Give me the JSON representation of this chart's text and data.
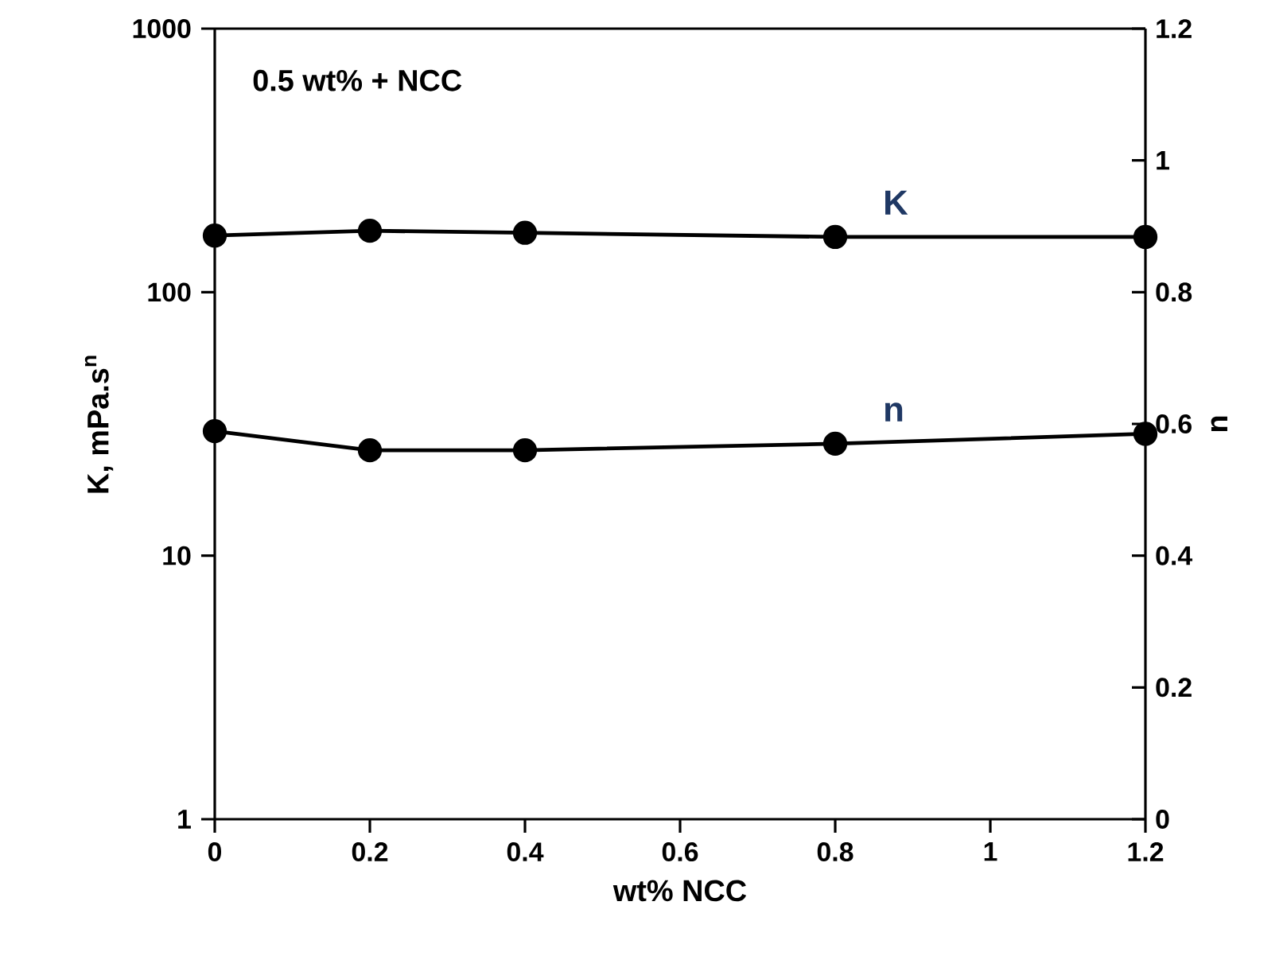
{
  "chart_data": {
    "type": "line",
    "title": "0.5 wt% + NCC",
    "xlabel": "wt% NCC",
    "ylabel": "K, mPa.s$^{n}$",
    "y2label": "n",
    "x": [
      0,
      0.2,
      0.4,
      0.8,
      1.2
    ],
    "series": [
      {
        "name": "K",
        "color": "#000000",
        "values": [
          164,
          171,
          168,
          162,
          162
        ]
      },
      {
        "name": "n",
        "color": "#000000",
        "axis": "y2",
        "values": [
          0.589,
          0.56,
          0.56,
          0.57,
          0.585
        ]
      }
    ],
    "xlim": [
      0,
      1.2
    ],
    "xticks": [
      0,
      0.2,
      0.4,
      0.6,
      0.8,
      1,
      1.2
    ],
    "ylim": [
      1,
      1000
    ],
    "yticks": [
      1,
      10,
      100,
      1000
    ],
    "log": "y",
    "y2lim": [
      0,
      1.2
    ],
    "y2ticks": [
      0,
      0.2,
      0.4,
      0.6,
      0.8,
      1,
      1.2
    ],
    "grid": false,
    "marker": "circle",
    "line_style": "solid"
  }
}
